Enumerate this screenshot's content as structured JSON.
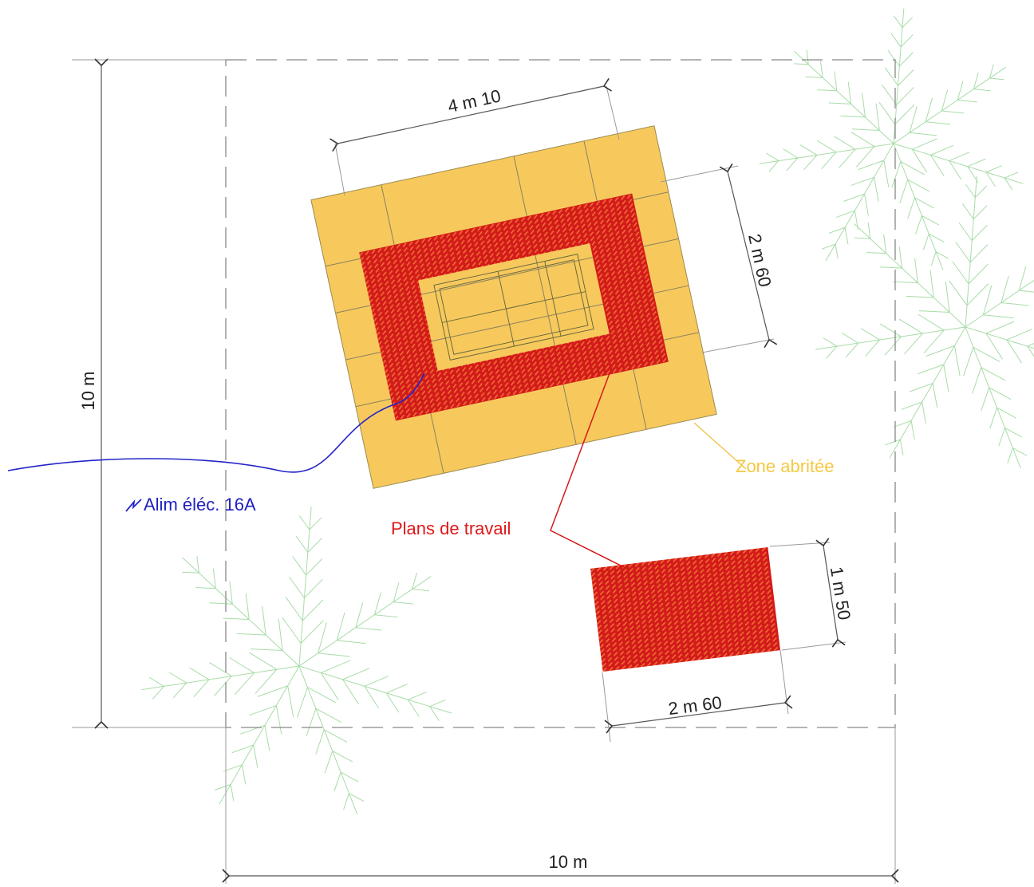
{
  "dimensions": {
    "site_depth": "10 m",
    "site_width": "10 m",
    "shelter_width": "4 m 10",
    "shelter_depth": "2 m 60",
    "bench_width": "2 m 60",
    "bench_depth": "1 m 50"
  },
  "labels": {
    "shelter": "Zone abritée",
    "power": "Alim éléc. 16A",
    "worktops": "Plans de travail"
  }
}
